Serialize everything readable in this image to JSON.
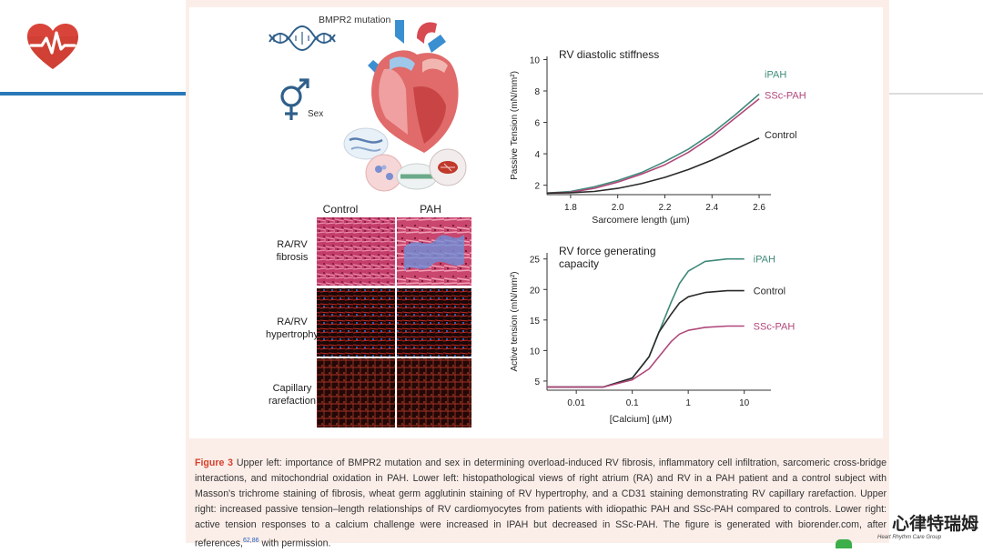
{
  "figure": {
    "top_left": {
      "mutation_label": "BMPR2 mutation",
      "sex_label": "Sex"
    },
    "histology": {
      "columns": [
        "Control",
        "PAH"
      ],
      "rows": [
        {
          "label_line1": "RA/RV",
          "label_line2": "fibrosis",
          "stain": "Masson's trichrome"
        },
        {
          "label_line1": "RA/RV",
          "label_line2": "hypertrophy",
          "stain": "wheat germ agglutinin"
        },
        {
          "label_line1": "Capillary",
          "label_line2": "rarefaction",
          "stain": "CD31"
        }
      ]
    },
    "caption": {
      "label": "Figure 3",
      "text": "Upper left: importance of BMPR2 mutation and sex in determining overload-induced RV fibrosis, inflammatory cell infiltration, sarcomeric cross-bridge interactions, and mitochondrial oxidation in PAH. Lower left: histopathological views of right atrium (RA) and RV in a PAH patient and a control subject with Masson's trichrome staining of fibrosis, wheat germ agglutinin staining of RV hypertrophy, and a CD31 staining demonstrating RV capillary rarefaction. Upper right: increased passive tension–length relationships of RV cardiomyocytes from patients with idiopathic PAH and SSc-PAH compared to controls. Lower right: active tension responses to a calcium challenge were increased in IPAH but decreased in SSc-PAH. The figure is generated with biorender.com, after references,",
      "refs": "62,86",
      "suffix": "with permission."
    }
  },
  "brand": {
    "name": "心律特瑞姆",
    "subtitle": "Heart Rhythm Care Group"
  },
  "chart_data": [
    {
      "type": "line",
      "title": "RV diastolic stiffness",
      "xlabel": "Sarcomere length (µm)",
      "ylabel": "Passive Tension (mN/mm²)",
      "xlim": [
        1.7,
        2.65
      ],
      "ylim": [
        1.4,
        10.2
      ],
      "x_ticks": [
        1.8,
        2.0,
        2.2,
        2.4,
        2.6
      ],
      "x_tick_labels": [
        "1.8",
        "2.0",
        "2.2",
        "2.4",
        "2.6"
      ],
      "y_ticks": [
        2,
        4,
        6,
        8,
        10
      ],
      "y_tick_labels": [
        "2",
        "4",
        "6",
        "8",
        "10"
      ],
      "grid": false,
      "series": [
        {
          "name": "iPAH",
          "color": "#3f8a7a",
          "x": [
            1.7,
            1.8,
            1.9,
            2.0,
            2.1,
            2.2,
            2.3,
            2.4,
            2.5,
            2.6
          ],
          "y": [
            1.5,
            1.6,
            1.9,
            2.3,
            2.8,
            3.5,
            4.3,
            5.3,
            6.5,
            7.8
          ]
        },
        {
          "name": "SSc-PAH",
          "color": "#b0477a",
          "x": [
            1.7,
            1.8,
            1.9,
            2.0,
            2.1,
            2.2,
            2.3,
            2.4,
            2.5,
            2.6
          ],
          "y": [
            1.5,
            1.55,
            1.8,
            2.2,
            2.7,
            3.3,
            4.1,
            5.1,
            6.3,
            7.5
          ]
        },
        {
          "name": "Control",
          "color": "#2a2a2a",
          "x": [
            1.7,
            1.8,
            1.9,
            2.0,
            2.1,
            2.2,
            2.3,
            2.4,
            2.5,
            2.6
          ],
          "y": [
            1.5,
            1.52,
            1.6,
            1.8,
            2.1,
            2.5,
            3.0,
            3.6,
            4.3,
            5.0
          ]
        }
      ]
    },
    {
      "type": "line",
      "title": "RV force generating capacity",
      "title_lines": [
        "RV force generating",
        "capacity"
      ],
      "xlabel": "[Calcium] (µM)",
      "ylabel": "Active tension (mN/mm²)",
      "x_scale": "log",
      "xlim": [
        0.003,
        30
      ],
      "ylim": [
        3.5,
        26
      ],
      "x_ticks": [
        0.01,
        0.1,
        1,
        10
      ],
      "x_tick_labels": [
        "0.01",
        "0.1",
        "1",
        "10"
      ],
      "y_ticks": [
        5,
        10,
        15,
        20,
        25
      ],
      "y_tick_labels": [
        "5",
        "10",
        "15",
        "20",
        "25"
      ],
      "grid": false,
      "series": [
        {
          "name": "iPAH",
          "color": "#3f8a7a",
          "x": [
            0.003,
            0.03,
            0.1,
            0.2,
            0.3,
            0.5,
            0.7,
            1,
            2,
            5,
            10
          ],
          "y": [
            4,
            4,
            5.5,
            9,
            13,
            18,
            21,
            23,
            24.6,
            25,
            25
          ]
        },
        {
          "name": "Control",
          "color": "#2a2a2a",
          "x": [
            0.003,
            0.03,
            0.1,
            0.2,
            0.3,
            0.5,
            0.7,
            1,
            2,
            5,
            10
          ],
          "y": [
            4,
            4,
            5.5,
            9,
            13,
            16,
            17.8,
            18.8,
            19.5,
            19.8,
            19.8
          ]
        },
        {
          "name": "SSc-PAH",
          "color": "#b0477a",
          "x": [
            0.003,
            0.03,
            0.1,
            0.2,
            0.3,
            0.5,
            0.7,
            1,
            2,
            5,
            10
          ],
          "y": [
            4,
            4,
            5.2,
            7,
            9,
            11.5,
            12.7,
            13.3,
            13.8,
            14,
            14
          ]
        }
      ]
    }
  ]
}
